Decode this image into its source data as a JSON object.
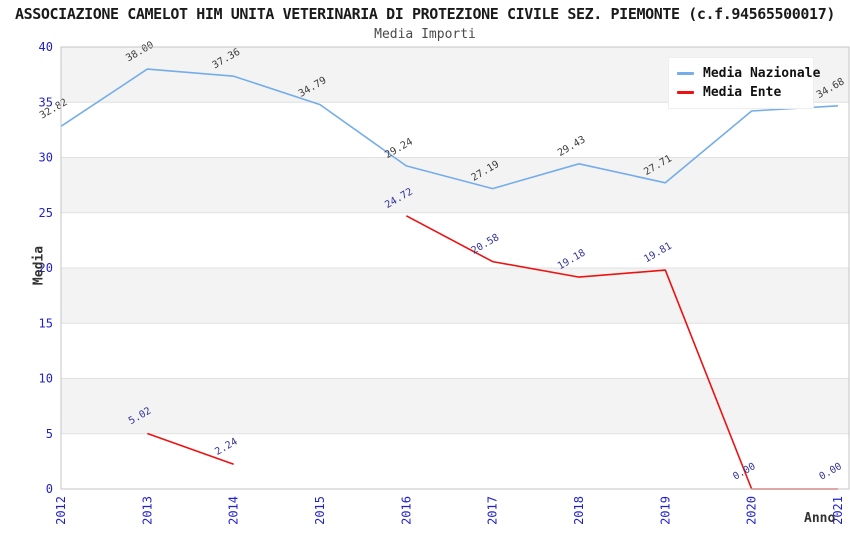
{
  "header": {
    "title": "ASSOCIAZIONE CAMELOT HIM UNITA VETERINARIA DI PROTEZIONE CIVILE SEZ. PIEMONTE (c.f.94565500017)",
    "subtitle": "Media Importi"
  },
  "legend": {
    "items": [
      {
        "label": "Media Nazionale",
        "color": "#74ade9"
      },
      {
        "label": "Media Ente",
        "color": "#ee1111"
      }
    ]
  },
  "axes": {
    "y_title": "Media",
    "x_title": "Anno",
    "y_ticks": [
      0,
      5,
      10,
      15,
      20,
      25,
      30,
      35,
      40
    ],
    "x_ticks": [
      "2012",
      "2013",
      "2014",
      "2015",
      "2016",
      "2017",
      "2018",
      "2019",
      "2020",
      "2021"
    ],
    "tick_color": "#2222cc"
  },
  "colors": {
    "band": "#f3f3f3",
    "gridline": "#e1e1e1",
    "frame": "#c6c6c6",
    "nazionale_line": "#74ade9",
    "ente_line": "#ee1111",
    "nazionale_label": "#3c3c3c",
    "ente_label": "#333399"
  },
  "chart_data": {
    "type": "line",
    "title": "Media Importi",
    "xlabel": "Anno",
    "ylabel": "Media",
    "ylim": [
      0,
      40
    ],
    "grid": true,
    "legend_position": "top-right",
    "categories": [
      "2012",
      "2013",
      "2014",
      "2015",
      "2016",
      "2017",
      "2018",
      "2019",
      "2020",
      "2021"
    ],
    "series": [
      {
        "name": "Media Nazionale",
        "color": "#74ade9",
        "label_color": "#3c3c3c",
        "values": [
          32.82,
          38.0,
          37.36,
          34.79,
          29.24,
          27.19,
          29.43,
          27.71,
          34.21,
          34.68
        ],
        "note": "2020 data label hidden behind legend in source image; 34.21 estimated from line position"
      },
      {
        "name": "Media Ente",
        "color": "#ee1111",
        "label_color": "#333399",
        "values": [
          null,
          5.02,
          2.24,
          null,
          24.72,
          20.58,
          19.18,
          19.81,
          0.0,
          0.0
        ]
      }
    ]
  }
}
